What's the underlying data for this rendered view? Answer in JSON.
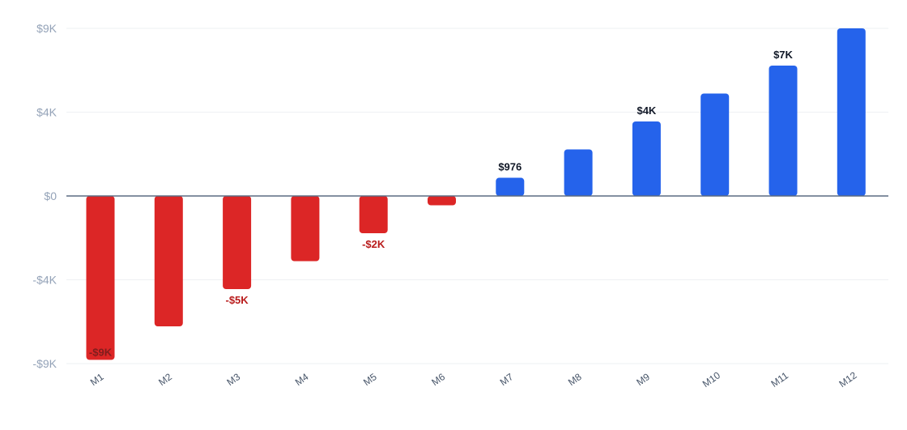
{
  "chart_data": {
    "type": "bar",
    "title": "",
    "xlabel": "",
    "ylabel": "",
    "categories": [
      "M1",
      "M2",
      "M3",
      "M4",
      "M5",
      "M6",
      "M7",
      "M8",
      "M9",
      "M10",
      "M11",
      "M12"
    ],
    "values": [
      -8800,
      -7000,
      -5000,
      -3500,
      -2000,
      -500,
      976,
      2500,
      4000,
      5500,
      7000,
      9000
    ],
    "ylim": [
      -9000,
      9000
    ],
    "y_ticks": [
      9000,
      4500,
      0,
      -4500,
      -9000
    ],
    "y_tick_labels": [
      "$9K",
      "$4K",
      "$0",
      "-$4K",
      "-$9K"
    ],
    "data_labels": [
      {
        "category": "M1",
        "text": "-$9K"
      },
      {
        "category": "M3",
        "text": "-$5K"
      },
      {
        "category": "M5",
        "text": "-$2K"
      },
      {
        "category": "M7",
        "text": "$976"
      },
      {
        "category": "M9",
        "text": "$4K"
      },
      {
        "category": "M11",
        "text": "$7K"
      }
    ],
    "grid": true,
    "legend": "none",
    "colors": {
      "positive": "#2563eb",
      "negative": "#dc2626",
      "negative_label": "#b91c1c",
      "positive_label": "#111827",
      "inner_label": "#7f1d1d"
    }
  }
}
